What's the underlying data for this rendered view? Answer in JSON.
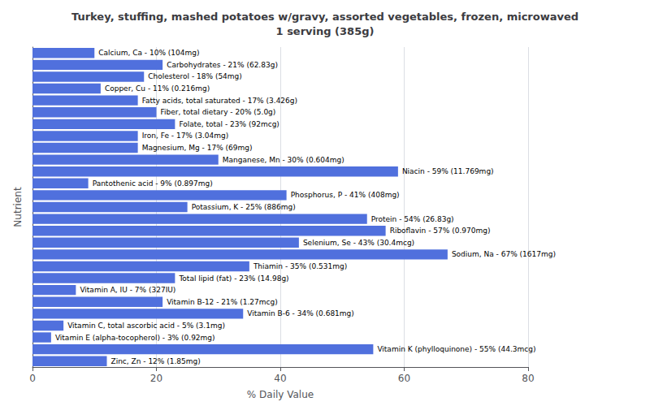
{
  "chart_data": {
    "type": "bar",
    "orientation": "horizontal",
    "title": "Turkey, stuffing, mashed potatoes w/gravy, assorted vegetables, frozen, microwaved\n1 serving (385g)",
    "xlabel": "% Daily Value",
    "ylabel": "Nutrient",
    "categories": [
      "Calcium, Ca - 10% (104mg)",
      "Carbohydrates - 21% (62.83g)",
      "Cholesterol - 18% (54mg)",
      "Copper, Cu - 11% (0.216mg)",
      "Fatty acids, total saturated - 17% (3.426g)",
      "Fiber, total dietary - 20% (5.0g)",
      "Folate, total - 23% (92mcg)",
      "Iron, Fe - 17% (3.04mg)",
      "Magnesium, Mg - 17% (69mg)",
      "Manganese, Mn - 30% (0.604mg)",
      "Niacin - 59% (11.769mg)",
      "Pantothenic acid - 9% (0.897mg)",
      "Phosphorus, P - 41% (408mg)",
      "Potassium, K - 25% (886mg)",
      "Protein - 54% (26.83g)",
      "Riboflavin - 57% (0.970mg)",
      "Selenium, Se - 43% (30.4mcg)",
      "Sodium, Na - 67% (1617mg)",
      "Thiamin - 35% (0.531mg)",
      "Total lipid (fat) - 23% (14.98g)",
      "Vitamin A, IU - 7% (327IU)",
      "Vitamin B-12 - 21% (1.27mcg)",
      "Vitamin B-6 - 34% (0.681mg)",
      "Vitamin C, total ascorbic acid - 5% (3.1mg)",
      "Vitamin E (alpha-tocopherol) - 3% (0.92mg)",
      "Vitamin K (phylloquinone) - 55% (44.3mcg)",
      "Zinc, Zn - 12% (1.85mg)"
    ],
    "values": [
      10,
      21,
      18,
      11,
      17,
      20,
      23,
      17,
      17,
      30,
      59,
      9,
      41,
      25,
      54,
      57,
      43,
      67,
      35,
      23,
      7,
      21,
      34,
      5,
      3,
      55,
      12
    ],
    "xlim": [
      0,
      80
    ],
    "xticks": [
      0,
      20,
      40,
      60,
      80
    ],
    "grid": true,
    "tick_labels": "x"
  }
}
